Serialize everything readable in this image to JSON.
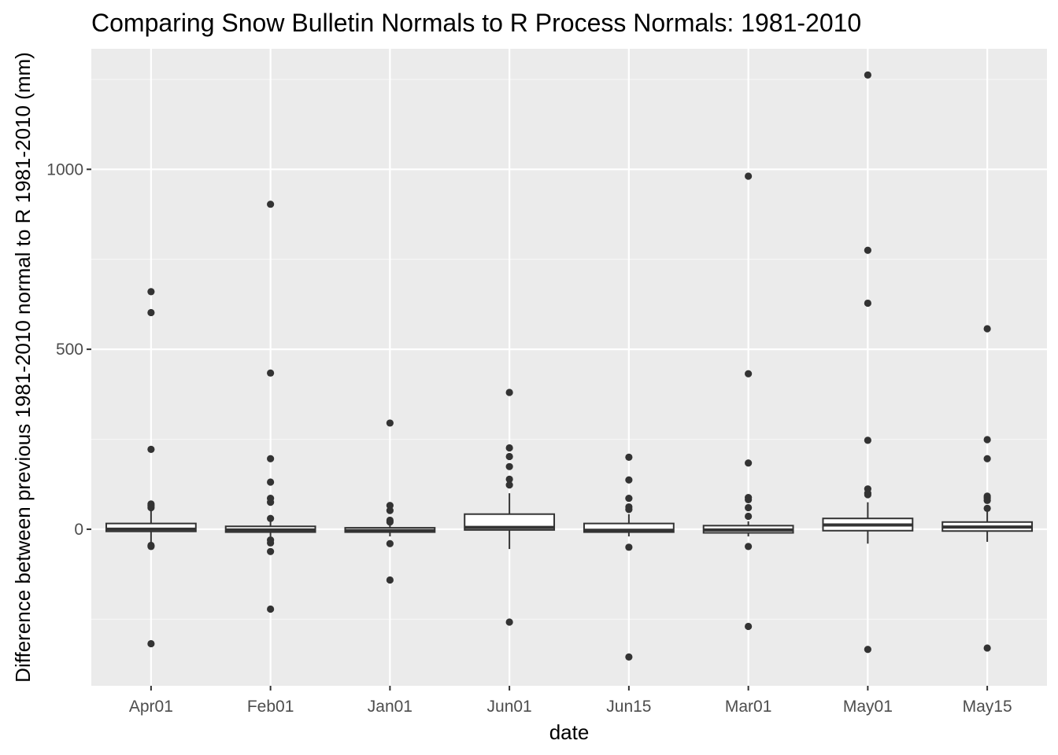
{
  "chart_data": {
    "type": "boxplot",
    "title": "Comparing Snow Bulletin Normals to R Process Normals: 1981-2010",
    "xlabel": "date",
    "ylabel": "Difference between previous 1981-2010 normal to R 1981-2010 (mm)",
    "ylim": [
      -435,
      1335
    ],
    "yticks": [
      0,
      500,
      1000
    ],
    "y_minor_ticks": [
      -250,
      250,
      750,
      1250
    ],
    "grid": true,
    "legend": "none",
    "colors": {
      "panel_bg": "#ebebeb",
      "grid": "#ffffff",
      "box_fill": "#ffffff",
      "line": "#333333",
      "tick_label": "#4d4d4d"
    },
    "categories": [
      "Apr01",
      "Feb01",
      "Jan01",
      "Jun01",
      "Jun15",
      "Mar01",
      "May01",
      "May15"
    ],
    "boxes": [
      {
        "category": "Apr01",
        "lower": -40,
        "q1": -6,
        "median": 0,
        "q3": 16,
        "upper": 60,
        "outliers": [
          660,
          602,
          222,
          70,
          65,
          60,
          -45,
          -48,
          -318
        ]
      },
      {
        "category": "Feb01",
        "lower": -20,
        "q1": -8,
        "median": -2,
        "q3": 8,
        "upper": 22,
        "outliers": [
          903,
          434,
          196,
          131,
          86,
          75,
          30,
          -30,
          -38,
          -62,
          -222
        ]
      },
      {
        "category": "Jan01",
        "lower": -20,
        "q1": -8,
        "median": -4,
        "q3": 4,
        "upper": 18,
        "outliers": [
          295,
          66,
          52,
          25,
          20,
          -40,
          -141
        ]
      },
      {
        "category": "Jun01",
        "lower": -55,
        "q1": -2,
        "median": 5,
        "q3": 42,
        "upper": 100,
        "outliers": [
          380,
          226,
          202,
          174,
          139,
          123,
          -258
        ]
      },
      {
        "category": "Jun15",
        "lower": -20,
        "q1": -8,
        "median": -3,
        "q3": 16,
        "upper": 42,
        "outliers": [
          200,
          137,
          86,
          62,
          55,
          -50,
          -355
        ]
      },
      {
        "category": "Mar01",
        "lower": -20,
        "q1": -10,
        "median": -2,
        "q3": 10,
        "upper": 22,
        "outliers": [
          981,
          432,
          184,
          88,
          82,
          60,
          36,
          -48,
          -270
        ]
      },
      {
        "category": "May01",
        "lower": -40,
        "q1": -4,
        "median": 12,
        "q3": 30,
        "upper": 75,
        "outliers": [
          1262,
          775,
          628,
          247,
          112,
          100,
          96,
          -334
        ]
      },
      {
        "category": "May15",
        "lower": -35,
        "q1": -5,
        "median": 6,
        "q3": 20,
        "upper": 55,
        "outliers": [
          557,
          249,
          196,
          92,
          87,
          80,
          58,
          -330
        ]
      }
    ]
  }
}
